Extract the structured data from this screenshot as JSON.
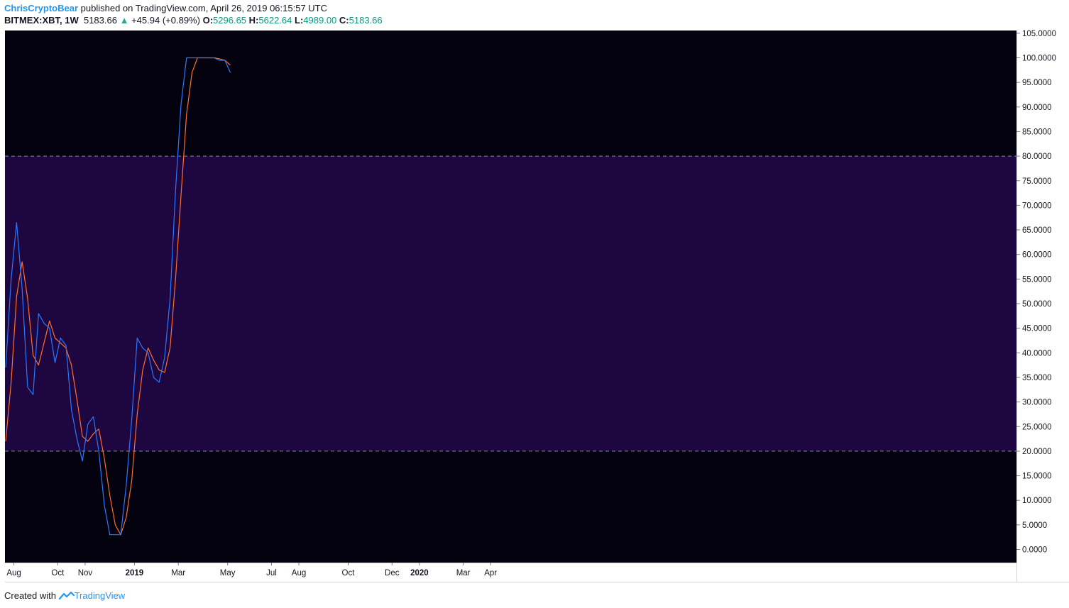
{
  "header": {
    "author": "ChrisCryptoBear",
    "published": " published on TradingView.com, April 26, 2019 06:15:57 UTC",
    "symbol": "BITMEX:XBT, 1W",
    "last": "5183.66",
    "change": "+45.94 (+0.89%)",
    "o_label": "O:",
    "o_value": "5296.65",
    "h_label": "H:",
    "h_value": "5622.64",
    "l_label": "L:",
    "l_value": "4989.00",
    "c_label": "C:",
    "c_value": "5183.66"
  },
  "footer": {
    "created": "Created with ",
    "brand": "TradingView"
  },
  "colors": {
    "background": "#03020e",
    "band": "#1e0640",
    "k_line": "#2979ff",
    "d_line": "#ff6d2e",
    "up_arrow": "#26a69a",
    "axis_text": "#131722"
  },
  "chart_data": {
    "type": "line",
    "ylim": [
      -2,
      105
    ],
    "y_ticks": [
      "105.0000",
      "100.0000",
      "95.0000",
      "90.0000",
      "85.0000",
      "80.0000",
      "75.0000",
      "70.0000",
      "65.0000",
      "60.0000",
      "55.0000",
      "50.0000",
      "45.0000",
      "40.0000",
      "35.0000",
      "30.0000",
      "25.0000",
      "20.0000",
      "15.0000",
      "10.0000",
      "5.0000",
      "0.0000"
    ],
    "y_tick_values": [
      105,
      100,
      95,
      90,
      85,
      80,
      75,
      70,
      65,
      60,
      55,
      50,
      45,
      40,
      35,
      30,
      25,
      20,
      15,
      10,
      5,
      0
    ],
    "x_ticks": [
      {
        "label": "Aug",
        "week": 1.5
      },
      {
        "label": "Oct",
        "week": 9.5
      },
      {
        "label": "Nov",
        "week": 14.5
      },
      {
        "label": "2019",
        "week": 23.5
      },
      {
        "label": "Mar",
        "week": 31.5
      },
      {
        "label": "May",
        "week": 40.5
      },
      {
        "label": "Jul",
        "week": 48.5
      },
      {
        "label": "Aug",
        "week": 53.5
      },
      {
        "label": "Oct",
        "week": 62.5
      },
      {
        "label": "Dec",
        "week": 70.5
      },
      {
        "label": "2020",
        "week": 75.5
      },
      {
        "label": "Mar",
        "week": 83.5
      },
      {
        "label": "Apr",
        "week": 88.5
      }
    ],
    "x_week_range": [
      -1.3,
      90.5
    ],
    "band": {
      "upper": 80,
      "lower": 20
    },
    "series": [
      {
        "key": "k",
        "values": [
          37,
          55,
          66.5,
          53,
          33,
          31.5,
          48,
          46,
          45,
          38,
          43,
          41.5,
          28.5,
          22.5,
          18,
          25.5,
          27,
          20,
          9,
          3,
          3,
          3,
          13,
          26.5,
          43,
          41,
          40,
          35,
          34,
          39,
          51,
          73,
          90.5,
          100,
          100,
          100,
          100,
          100,
          100,
          99.5,
          99.5,
          97
        ]
      },
      {
        "key": "d",
        "values": [
          22,
          34,
          51.5,
          58.5,
          51,
          39.5,
          37.5,
          42,
          46.5,
          43,
          42,
          41,
          37.5,
          30.5,
          23,
          22,
          23.5,
          24.5,
          18.5,
          11,
          5,
          3,
          6.5,
          14,
          27.5,
          36.5,
          41,
          38.5,
          36.5,
          36,
          41,
          55,
          72,
          88.5,
          97,
          100,
          100,
          100,
          100,
          99.8,
          99.5,
          98.5
        ]
      }
    ]
  }
}
